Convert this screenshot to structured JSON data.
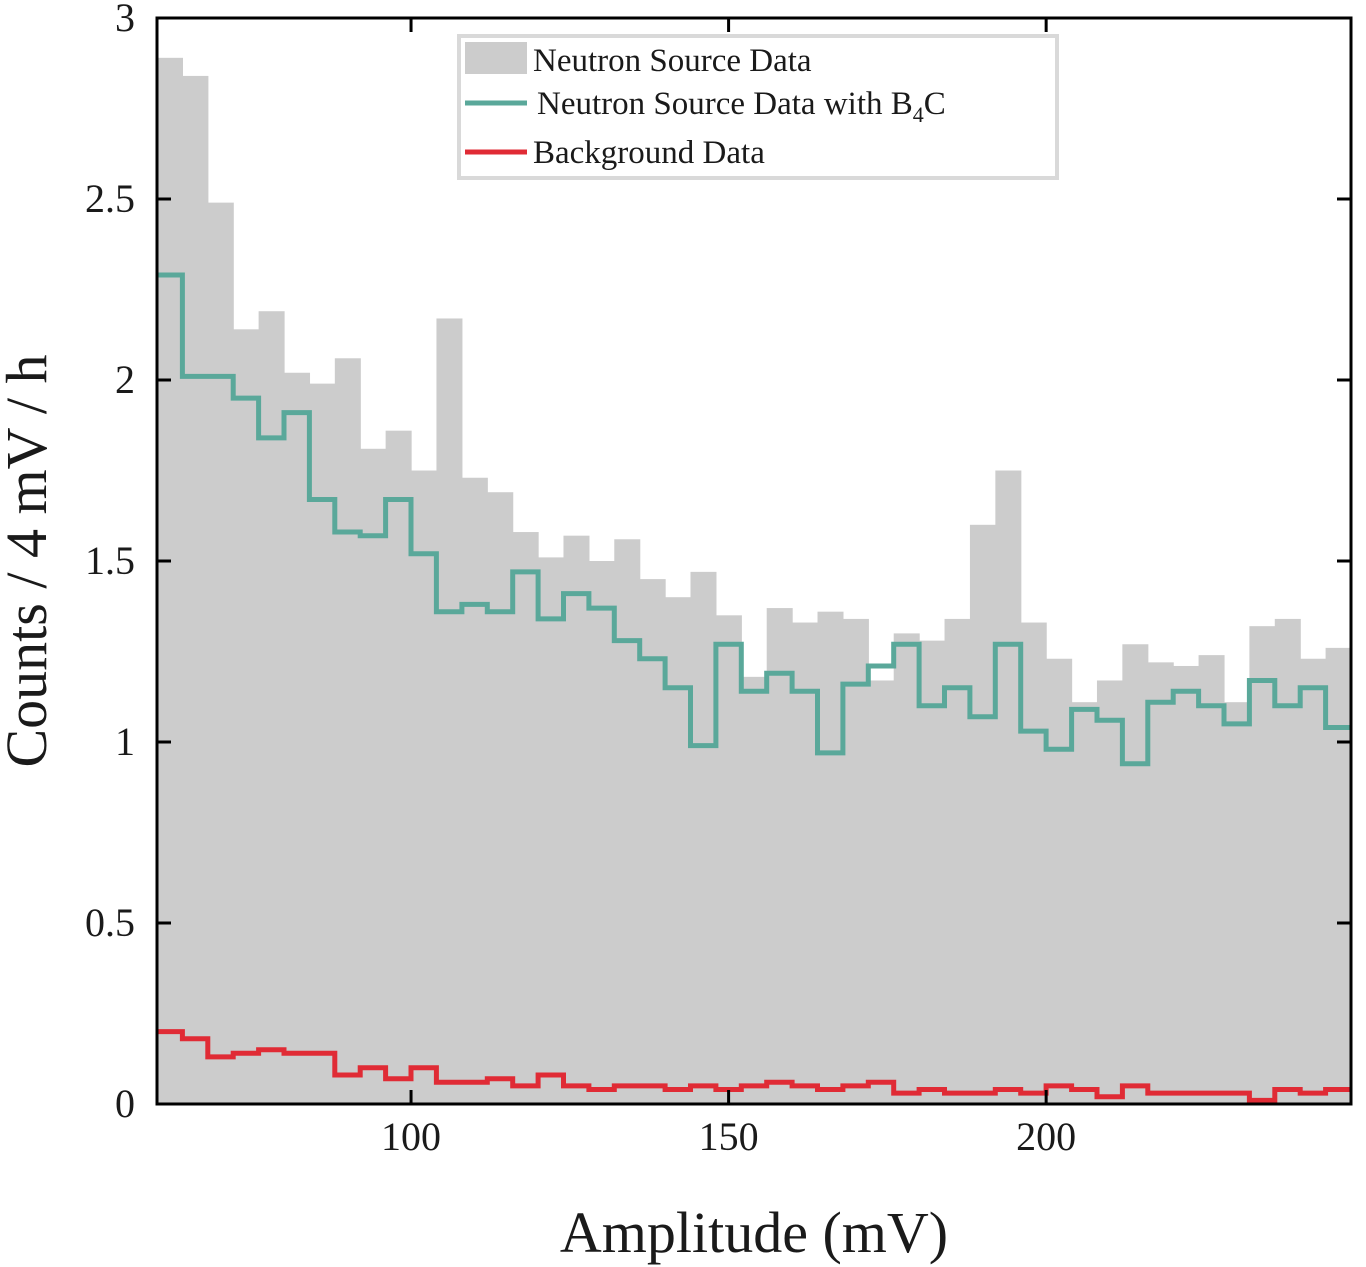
{
  "chart_data": {
    "type": "histogram",
    "title": "",
    "xlabel": "Amplitude (mV)",
    "ylabel": "Counts / 4 mV / h",
    "xlim": [
      60,
      248
    ],
    "ylim": [
      0,
      3
    ],
    "xticks": [
      100,
      150,
      200
    ],
    "yticks": [
      0,
      0.5,
      1,
      1.5,
      2,
      2.5,
      3
    ],
    "xtick_labels": [
      "100",
      "150",
      "200"
    ],
    "ytick_labels": [
      "0",
      "0.5",
      "1",
      "1.5",
      "2",
      "2.5",
      "3"
    ],
    "bin_start": 60,
    "bin_width": 4,
    "grid": false,
    "legend_position": "top-center",
    "series": [
      {
        "name": "Neutron Source Data",
        "style": "filled-bars",
        "color": "#cccccc",
        "values": [
          2.89,
          2.84,
          2.49,
          2.14,
          2.19,
          2.02,
          1.99,
          2.06,
          1.81,
          1.86,
          1.75,
          2.17,
          1.73,
          1.69,
          1.58,
          1.51,
          1.57,
          1.5,
          1.56,
          1.45,
          1.4,
          1.47,
          1.35,
          1.18,
          1.37,
          1.33,
          1.36,
          1.34,
          1.17,
          1.3,
          1.28,
          1.34,
          1.6,
          1.75,
          1.33,
          1.23,
          1.11,
          1.17,
          1.27,
          1.22,
          1.21,
          1.24,
          1.11,
          1.32,
          1.34,
          1.23,
          1.26
        ]
      },
      {
        "name": "Neutron Source Data with B4C",
        "legend_main": "Neutron  Source  Data  with  B",
        "legend_sub": "4",
        "legend_tail": "C",
        "style": "step",
        "color": "#5aa89a",
        "values": [
          2.29,
          2.01,
          2.01,
          1.95,
          1.84,
          1.91,
          1.67,
          1.58,
          1.57,
          1.67,
          1.52,
          1.36,
          1.38,
          1.36,
          1.47,
          1.34,
          1.41,
          1.37,
          1.28,
          1.23,
          1.15,
          0.99,
          1.27,
          1.14,
          1.19,
          1.14,
          0.97,
          1.16,
          1.21,
          1.27,
          1.1,
          1.15,
          1.07,
          1.27,
          1.03,
          0.98,
          1.09,
          1.06,
          0.94,
          1.11,
          1.14,
          1.1,
          1.05,
          1.17,
          1.1,
          1.15,
          1.04
        ]
      },
      {
        "name": "Background Data",
        "style": "step",
        "color": "#e02b35",
        "values": [
          0.2,
          0.18,
          0.13,
          0.14,
          0.15,
          0.14,
          0.14,
          0.08,
          0.1,
          0.07,
          0.1,
          0.06,
          0.06,
          0.07,
          0.05,
          0.08,
          0.05,
          0.04,
          0.05,
          0.05,
          0.04,
          0.05,
          0.04,
          0.05,
          0.06,
          0.05,
          0.04,
          0.05,
          0.06,
          0.03,
          0.04,
          0.03,
          0.03,
          0.04,
          0.03,
          0.05,
          0.04,
          0.02,
          0.05,
          0.03,
          0.03,
          0.03,
          0.03,
          0.01,
          0.04,
          0.03,
          0.04
        ]
      }
    ]
  }
}
